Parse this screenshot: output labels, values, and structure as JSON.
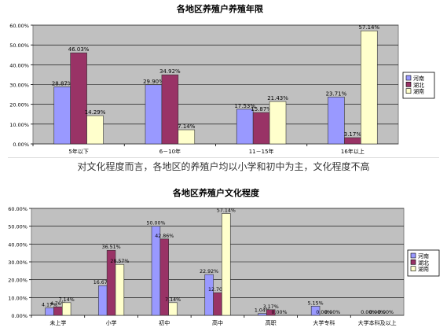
{
  "caption": "对文化程度而言，各地区的养殖户均以小学和初中为主，文化程度不高",
  "colors": {
    "henan": "#9999ff",
    "hubei": "#993366",
    "hunan": "#ffffcc",
    "plot_bg": "#c0c0c0",
    "bar_stroke": "#333333"
  },
  "chart_data": [
    {
      "type": "bar",
      "title": "各地区养殖户养殖年限",
      "categories": [
        "5年以下",
        "6－10年",
        "11－15年",
        "16年以上"
      ],
      "series": [
        {
          "name": "河南",
          "values": [
            28.87,
            29.9,
            17.53,
            23.71
          ],
          "labels": [
            "28.87%",
            "29.90%",
            "17.53%",
            "23.71%"
          ]
        },
        {
          "name": "湖北",
          "values": [
            46.03,
            34.92,
            15.87,
            3.17
          ],
          "labels": [
            "46.03%",
            "34.92%",
            "15.87%",
            "3.17%"
          ]
        },
        {
          "name": "湖南",
          "values": [
            14.29,
            7.14,
            21.43,
            57.14
          ],
          "labels": [
            "14.29%",
            "7.14%",
            "21.43%",
            "57.14%"
          ]
        }
      ],
      "yticks": [
        "0.00%",
        "10.00%",
        "20.00%",
        "30.00%",
        "40.00%",
        "50.00%",
        "60.00%"
      ],
      "ylim": [
        0,
        60
      ],
      "legend": "right",
      "grid": true
    },
    {
      "type": "bar",
      "title": "各地区养殖户文化程度",
      "categories": [
        "未上学",
        "小学",
        "初中",
        "高中",
        "高职",
        "大学专科",
        "大学本科及以上"
      ],
      "series": [
        {
          "name": "河南",
          "values": [
            4.17,
            16.67,
            50.0,
            22.92,
            1.04,
            5.15,
            0.0
          ],
          "labels": [
            "4.17%",
            "16.67%",
            "50.00%",
            "22.92%",
            "1.04%",
            "5.15%",
            "0.00%"
          ]
        },
        {
          "name": "湖北",
          "values": [
            4.76,
            36.51,
            42.86,
            12.7,
            3.17,
            0.0,
            0.0
          ],
          "labels": [
            "4.76%",
            "36.51%",
            "42.86%",
            "12.70%",
            "3.17%",
            "0.00%",
            "0.00%"
          ]
        },
        {
          "name": "湖南",
          "values": [
            7.14,
            28.57,
            7.14,
            57.14,
            0.0,
            0.0,
            0.0
          ],
          "labels": [
            "7.14%",
            "28.57%",
            "7.14%",
            "57.14%",
            "0.00%",
            "0.00%",
            "0.00%"
          ]
        }
      ],
      "yticks": [
        "0.00%",
        "10.00%",
        "20.00%",
        "30.00%",
        "40.00%",
        "50.00%",
        "60.00%"
      ],
      "ylim": [
        0,
        60
      ],
      "legend": "right",
      "grid": true
    }
  ]
}
